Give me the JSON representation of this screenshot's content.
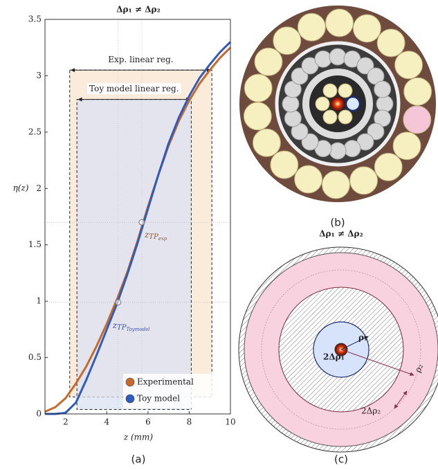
{
  "chart_data": {
    "type": "line",
    "title": "Δρ₁ ≠ Δρ₂",
    "xlabel": "z (mm)",
    "ylabel": "η(z)",
    "x": [
      1,
      1.5,
      2,
      2.5,
      3,
      3.5,
      4,
      4.5,
      5,
      5.5,
      6,
      6.5,
      7,
      7.5,
      8,
      8.5,
      9,
      9.5,
      10
    ],
    "series": [
      {
        "name": "Experimental",
        "color": "#c8692c",
        "values": [
          0.02,
          0.06,
          0.14,
          0.27,
          0.42,
          0.6,
          0.8,
          1.02,
          1.26,
          1.54,
          1.84,
          2.12,
          2.38,
          2.6,
          2.78,
          2.93,
          3.05,
          3.16,
          3.25
        ]
      },
      {
        "name": "Toy model",
        "color": "#2f5bbd",
        "values": [
          0,
          0,
          0.01,
          0.1,
          0.3,
          0.52,
          0.75,
          0.98,
          1.24,
          1.52,
          1.82,
          2.12,
          2.4,
          2.63,
          2.82,
          2.98,
          3.1,
          3.21,
          3.3
        ]
      }
    ],
    "xlim": [
      1,
      10
    ],
    "ylim": [
      0,
      3.5
    ],
    "xticks": [
      2,
      4,
      6,
      8,
      10
    ],
    "yticks": [
      0,
      0.5,
      1,
      1.5,
      2,
      2.5,
      3,
      3.5
    ],
    "regions": [
      {
        "label": "Exp. linear reg.",
        "x": [
          2.2,
          9.1
        ],
        "y": [
          0.15,
          3.05
        ],
        "color": "#f8e4cf"
      },
      {
        "label": "Toy model linear reg.",
        "x": [
          2.55,
          8.1
        ],
        "y": [
          0.04,
          2.79
        ],
        "color": "#dbe2f3"
      }
    ],
    "annotations": [
      {
        "x": 5.7,
        "y": 1.7,
        "text": "z",
        "sub": "TP",
        "subsub": "exp",
        "color": "#8b5a3c"
      },
      {
        "x": 4.55,
        "y": 0.99,
        "text": "z",
        "sub": "TP",
        "subsub": "Toymodel",
        "color": "#3a4fa0"
      }
    ],
    "legend": "lower right",
    "panel_label": "(a)"
  },
  "photo": {
    "panel_label": "(b)"
  },
  "diagram": {
    "title": "Δρ₁ ≠ Δρ₂",
    "panel_label": "(c)",
    "labels": [
      "ρ₁",
      "2Δρ₁",
      "ρ₂",
      "2Δρ₂"
    ]
  }
}
